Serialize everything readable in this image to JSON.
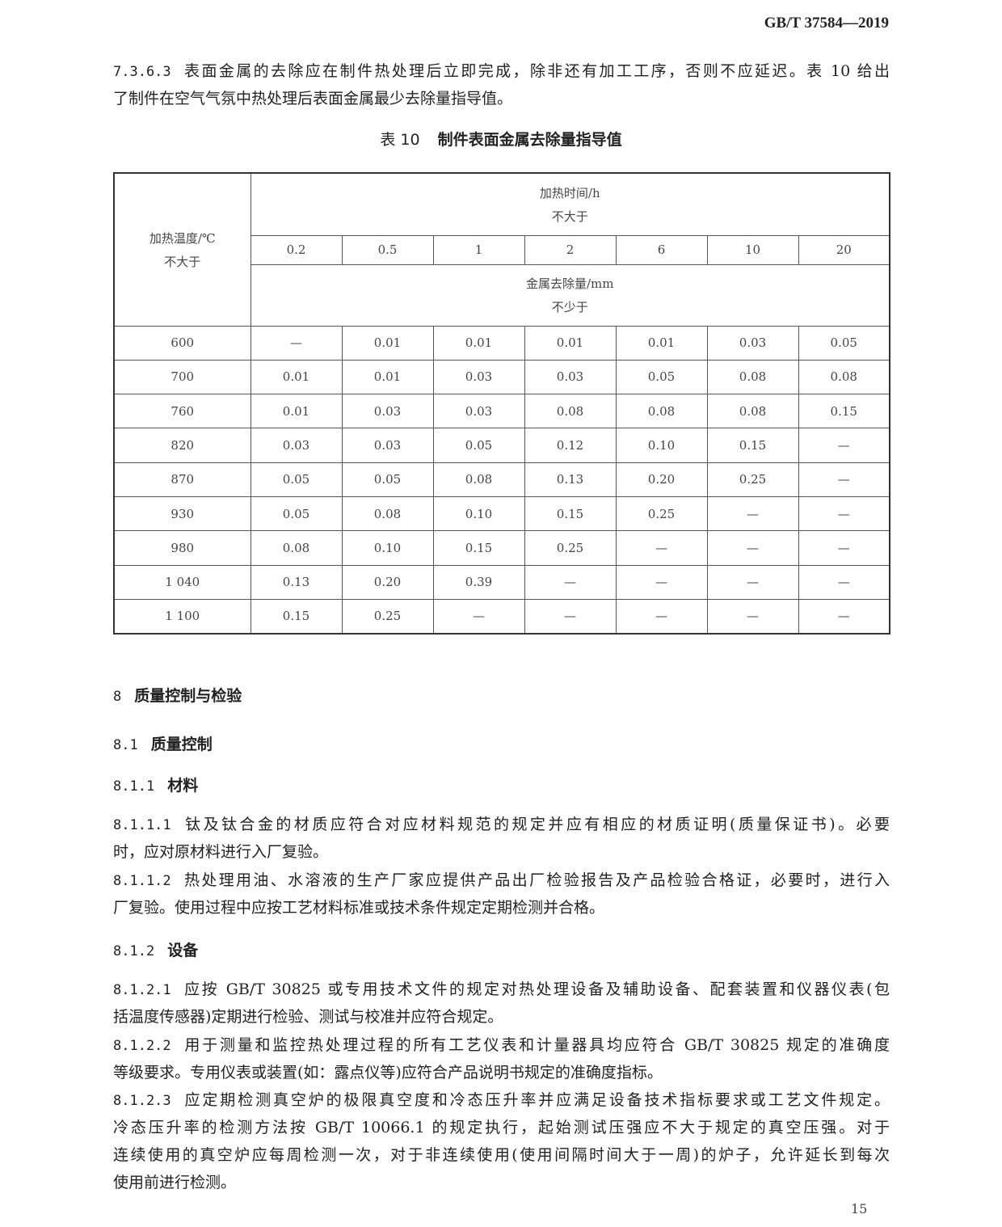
{
  "header": {
    "standard": "GB/T 37584—2019"
  },
  "para_7363": {
    "number": "7.3.6.3",
    "lines": [
      "表面金属的去除应在制件热处理后立即完成，除非还有加工工序，否则不应延迟。表 10 给出",
      "了制件在空气气氛中热处理后表面金属最少去除量指导值。"
    ]
  },
  "table": {
    "caption_number": "表 10",
    "caption": "制件表面金属去除量指导值",
    "row_header": [
      "加热温度/℃",
      "不大于"
    ],
    "time_header": [
      "加热时间/h",
      "不大于"
    ],
    "times": [
      "0.2",
      "0.5",
      "1",
      "2",
      "6",
      "10",
      "20"
    ],
    "value_header": [
      "金属去除量/mm",
      "不少于"
    ],
    "rows": [
      [
        "600",
        "—",
        "0.01",
        "0.01",
        "0.01",
        "0.01",
        "0.03",
        "0.05"
      ],
      [
        "700",
        "0.01",
        "0.01",
        "0.03",
        "0.03",
        "0.05",
        "0.08",
        "0.08"
      ],
      [
        "760",
        "0.01",
        "0.03",
        "0.03",
        "0.08",
        "0.08",
        "0.08",
        "0.15"
      ],
      [
        "820",
        "0.03",
        "0.03",
        "0.05",
        "0.12",
        "0.10",
        "0.15",
        "—"
      ],
      [
        "870",
        "0.05",
        "0.05",
        "0.08",
        "0.13",
        "0.20",
        "0.25",
        "—"
      ],
      [
        "930",
        "0.05",
        "0.08",
        "0.10",
        "0.15",
        "0.25",
        "—",
        "—"
      ],
      [
        "980",
        "0.08",
        "0.10",
        "0.15",
        "0.25",
        "—",
        "—",
        "—"
      ],
      [
        "1 040",
        "0.13",
        "0.20",
        "0.39",
        "—",
        "—",
        "—",
        "—"
      ],
      [
        "1 100",
        "0.15",
        "0.25",
        "—",
        "—",
        "—",
        "—",
        "—"
      ]
    ]
  },
  "sec8": {
    "number": "8",
    "title": "质量控制与检验"
  },
  "sec81": {
    "number": "8.1",
    "title": "质量控制"
  },
  "sec811": {
    "number": "8.1.1",
    "title": "材料"
  },
  "p8111": {
    "number": "8.1.1.1",
    "lines": [
      "钛及钛合金的材质应符合对应材料规范的规定并应有相应的材质证明(质量保证书)。必要",
      "时，应对原材料进行入厂复验。"
    ]
  },
  "p8112": {
    "number": "8.1.1.2",
    "lines": [
      "热处理用油、水溶液的生产厂家应提供产品出厂检验报告及产品检验合格证，必要时，进行入",
      "厂复验。使用过程中应按工艺材料标准或技术条件规定定期检测并合格。"
    ]
  },
  "sec812": {
    "number": "8.1.2",
    "title": "设备"
  },
  "p8121": {
    "number": "8.1.2.1",
    "lines": [
      "应按 GB/T 30825 或专用技术文件的规定对热处理设备及辅助设备、配套装置和仪器仪表(包",
      "括温度传感器)定期进行检验、测试与校准并应符合规定。"
    ]
  },
  "p8122": {
    "number": "8.1.2.2",
    "lines": [
      "用于测量和监控热处理过程的所有工艺仪表和计量器具均应符合 GB/T 30825 规定的准确度",
      "等级要求。专用仪表或装置(如：露点仪等)应符合产品说明书规定的准确度指标。"
    ]
  },
  "p8123": {
    "number": "8.1.2.3",
    "lines": [
      "应定期检测真空炉的极限真空度和冷态压升率并应满足设备技术指标要求或工艺文件规定。",
      "冷态压升率的检测方法按 GB/T 10066.1 的规定执行，起始测试压强应不大于规定的真空压强。对于",
      "连续使用的真空炉应每周检测一次，对于非连续使用(使用间隔时间大于一周)的炉子，允许延长到每次",
      "使用前进行检测。"
    ]
  },
  "page_number": "15"
}
